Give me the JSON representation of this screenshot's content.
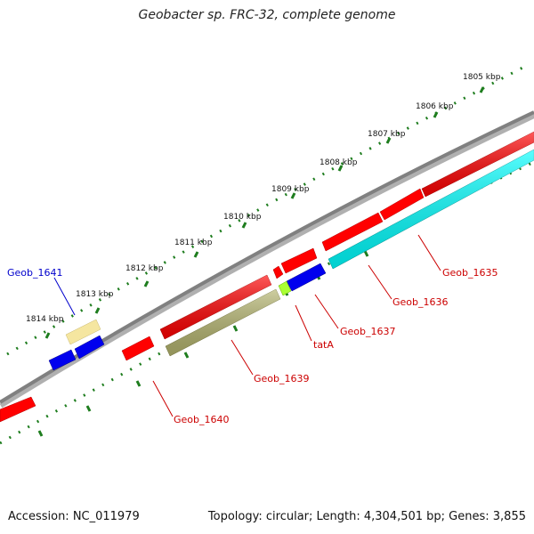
{
  "title": "Geobacter sp. FRC-32, complete genome",
  "footer": {
    "accession": "Accession: NC_011979",
    "summary": "Topology: circular; Length: 4,304,501 bp; Genes: 3,855"
  },
  "colors": {
    "backbone": "#808080",
    "tick": "#1e7d1e",
    "label_red": "#cc0000",
    "label_blue": "#0000cc",
    "gene_red": "#ff0000",
    "gene_blue": "#0000ee",
    "gene_cyan": "#00ffff",
    "gene_khaki": "#b4b46e",
    "gene_pale": "#f5e6a0",
    "gene_green": "#aaff33"
  },
  "kbp_labels": [
    "1805 kbp",
    "1806 kbp",
    "1807 kbp",
    "1808 kbp",
    "1809 kbp",
    "1810 kbp",
    "1811 kbp",
    "1812 kbp",
    "1813 kbp",
    "1814 kbp"
  ],
  "genes": [
    {
      "name": "Geob_1635",
      "color": "cyan",
      "strand": "minus"
    },
    {
      "name": "Geob_1636",
      "color": "red",
      "strand": "plus"
    },
    {
      "name": "Geob_1637",
      "color": "blue",
      "strand": "minus"
    },
    {
      "name": "tatA",
      "color": "green",
      "strand": "minus"
    },
    {
      "name": "Geob_1639",
      "color": "khaki",
      "strand": "minus"
    },
    {
      "name": "Geob_1640",
      "color": "red",
      "strand": "plus"
    },
    {
      "name": "Geob_1641",
      "color": "pale",
      "strand": "minus"
    }
  ]
}
